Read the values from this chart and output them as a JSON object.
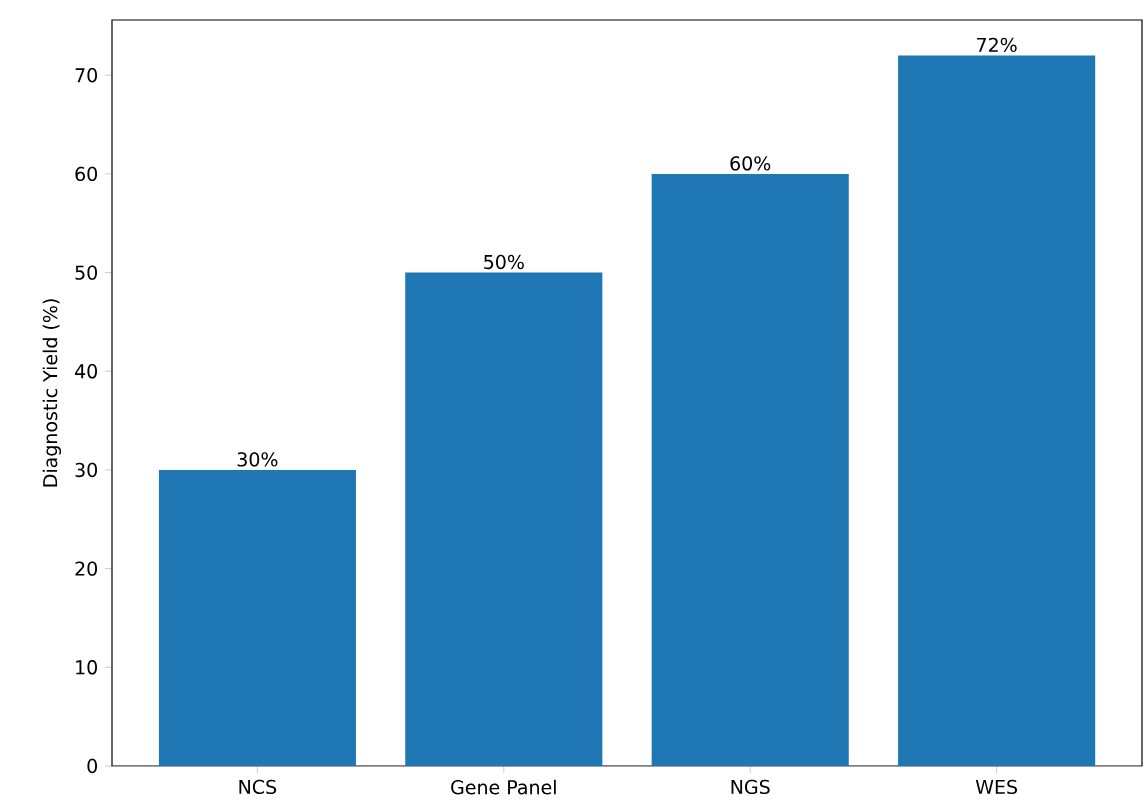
{
  "chart_data": {
    "type": "bar",
    "ylabel": "Diagnostic Yield (%)",
    "categories": [
      "NCS",
      "Gene Panel",
      "NGS",
      "WES"
    ],
    "values": [
      30,
      50,
      60,
      72
    ],
    "value_labels": [
      "30%",
      "50%",
      "60%",
      "72%"
    ],
    "color": "#1f77b4",
    "ylim": [
      0,
      75.6
    ],
    "yticks": [
      0,
      10,
      20,
      30,
      40,
      50,
      60,
      70
    ]
  }
}
